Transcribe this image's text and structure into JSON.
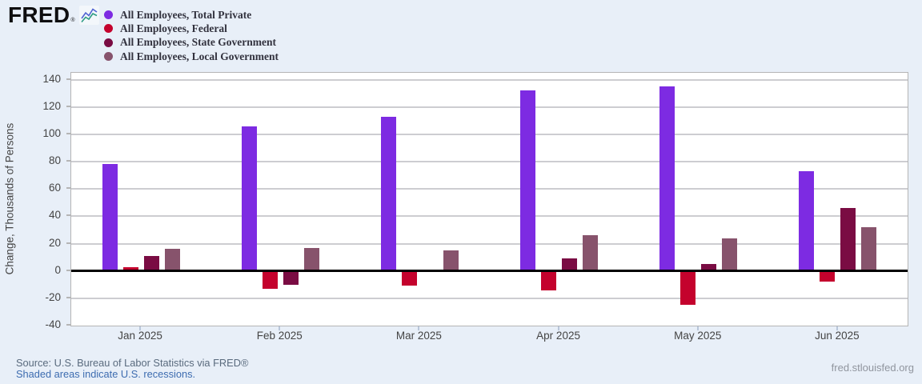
{
  "header": {
    "logo_text": "FRED",
    "logo_reg": "®",
    "logo_icon": "sparkline-icon"
  },
  "legend": [
    {
      "label": "All Employees, Total Private",
      "color": "#7d2be2"
    },
    {
      "label": "All Employees, Federal",
      "color": "#c4022d"
    },
    {
      "label": "All Employees, State Government",
      "color": "#7a0c43"
    },
    {
      "label": "All Employees, Local Government",
      "color": "#87536c"
    }
  ],
  "chart_data": {
    "type": "bar",
    "categories": [
      "Jan 2025",
      "Feb 2025",
      "Mar 2025",
      "Apr 2025",
      "May 2025",
      "Jun 2025"
    ],
    "series": [
      {
        "name": "All Employees, Total Private",
        "color": "#7d2be2",
        "values": [
          78,
          106,
          113,
          132,
          135,
          73
        ]
      },
      {
        "name": "All Employees, Federal",
        "color": "#c4022d",
        "values": [
          3,
          -13,
          -11,
          -14,
          -25,
          -8
        ]
      },
      {
        "name": "All Employees, State Government",
        "color": "#7a0c43",
        "values": [
          11,
          -10,
          0,
          9,
          5,
          46
        ]
      },
      {
        "name": "All Employees, Local Government",
        "color": "#87536c",
        "values": [
          16,
          17,
          15,
          26,
          24,
          32
        ]
      }
    ],
    "ylabel": "Change, Thousands of Persons",
    "xlabel": "",
    "title": "",
    "yticks": [
      140,
      120,
      100,
      80,
      60,
      40,
      20,
      0,
      -20,
      -40
    ],
    "ylim": [
      -40,
      145
    ],
    "grid": true,
    "legend_position": "top-left",
    "zero_line_color": "#000000",
    "gridline_color": "#cdcdd1"
  },
  "footer": {
    "source_line": "Source: U.S. Bureau of Labor Statistics via FRED®",
    "recession_note": "Shaded areas indicate U.S. recessions.",
    "site_url": "fred.stlouisfed.org"
  }
}
